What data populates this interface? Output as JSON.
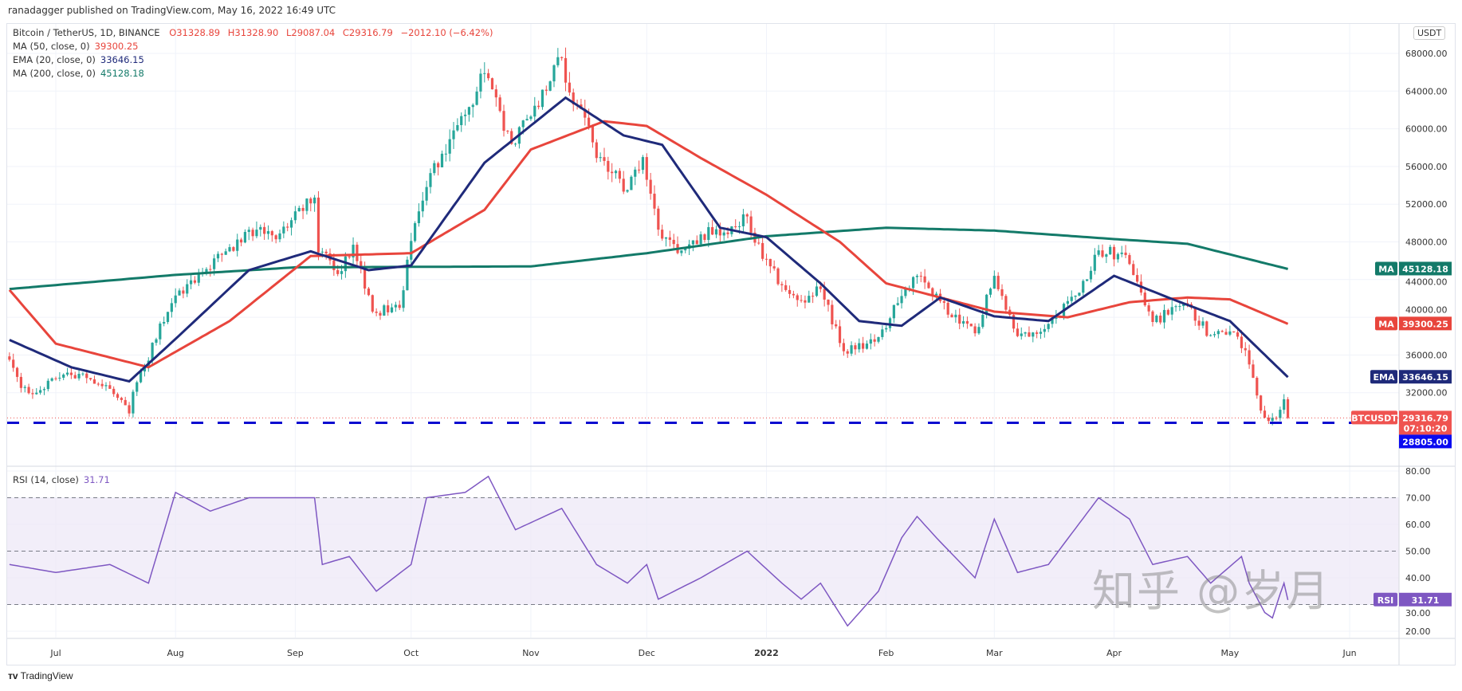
{
  "published": "ranadagger published on TradingView.com, May 16, 2022 16:49 UTC",
  "legend": {
    "symbol": "Bitcoin / TetherUS, 1D, BINANCE",
    "o": "O31328.89",
    "h": "H31328.90",
    "l": "L29087.04",
    "c": "C29316.79",
    "change": "−2012.10 (−6.42%)",
    "ma50_label": "MA (50, close, 0)",
    "ma50_value": "39300.25",
    "ema20_label": "EMA (20, close, 0)",
    "ema20_value": "33646.15",
    "ma200_label": "MA (200, close, 0)",
    "ma200_value": "45128.18",
    "rsi_label": "RSI (14, close)",
    "rsi_value": "31.71"
  },
  "currency_button": "USDT",
  "badges": {
    "ma200_tag": "MA",
    "ma200": "45128.18",
    "ma50_tag": "MA",
    "ma50": "39300.25",
    "ema_tag": "EMA",
    "ema": "33646.15",
    "symbol_tag": "BTCUSDT",
    "last": "29316.79",
    "countdown": "07:10:20",
    "support": "28805.00",
    "rsi_tag": "RSI",
    "rsi": "31.71"
  },
  "colors": {
    "up": "#26a69a",
    "down": "#ef5350",
    "ma50": "#e8453c",
    "ema20": "#1f2a7a",
    "ma200": "#137a69",
    "rsi": "#7e57c2",
    "support": "#0a0ad0"
  },
  "footer": "TradingView",
  "watermark": "知乎 @岁月",
  "chart_data": {
    "type": "candlestick",
    "title": "Bitcoin / TetherUS, 1D, BINANCE",
    "ylim": [
      27000,
      69500
    ],
    "price_ticks": [
      "68000.00",
      "64000.00",
      "60000.00",
      "56000.00",
      "52000.00",
      "48000.00",
      "44000.00",
      "40000.00",
      "36000.00",
      "32000.00"
    ],
    "price_tick_values": [
      68000,
      64000,
      60000,
      56000,
      52000,
      48000,
      44000,
      40000,
      36000,
      32000
    ],
    "x_ticks": [
      {
        "label": "Jul",
        "date": "2021-07-01"
      },
      {
        "label": "Aug",
        "date": "2021-08-01"
      },
      {
        "label": "Sep",
        "date": "2021-09-01"
      },
      {
        "label": "Oct",
        "date": "2021-10-01"
      },
      {
        "label": "Nov",
        "date": "2021-11-01"
      },
      {
        "label": "Dec",
        "date": "2021-12-01"
      },
      {
        "label": "2022",
        "date": "2022-01-01"
      },
      {
        "label": "Feb",
        "date": "2022-02-01"
      },
      {
        "label": "Mar",
        "date": "2022-03-01"
      },
      {
        "label": "Apr",
        "date": "2022-04-01"
      },
      {
        "label": "May",
        "date": "2022-05-01"
      },
      {
        "label": "Jun",
        "date": "2022-06-01"
      }
    ],
    "support_level": 28805,
    "close_keypoints": [
      [
        "2021-06-19",
        35500
      ],
      [
        "2021-06-22",
        32500
      ],
      [
        "2021-06-26",
        32000
      ],
      [
        "2021-07-01",
        33500
      ],
      [
        "2021-07-07",
        34000
      ],
      [
        "2021-07-14",
        32800
      ],
      [
        "2021-07-20",
        29800
      ],
      [
        "2021-07-21",
        32100
      ],
      [
        "2021-07-25",
        35400
      ],
      [
        "2021-07-26",
        37300
      ],
      [
        "2021-07-31",
        41500
      ],
      [
        "2021-08-07",
        44600
      ],
      [
        "2021-08-14",
        47000
      ],
      [
        "2021-08-22",
        49300
      ],
      [
        "2021-08-28",
        48900
      ],
      [
        "2021-09-06",
        52700
      ],
      [
        "2021-09-07",
        46900
      ],
      [
        "2021-09-13",
        44900
      ],
      [
        "2021-09-16",
        47700
      ],
      [
        "2021-09-21",
        40600
      ],
      [
        "2021-09-28",
        41000
      ],
      [
        "2021-10-01",
        48100
      ],
      [
        "2021-10-06",
        55300
      ],
      [
        "2021-10-15",
        61500
      ],
      [
        "2021-10-20",
        65900
      ],
      [
        "2021-10-27",
        58400
      ],
      [
        "2021-11-01",
        61300
      ],
      [
        "2021-11-09",
        67500
      ],
      [
        "2021-11-10",
        64900
      ],
      [
        "2021-11-16",
        60300
      ],
      [
        "2021-11-18",
        56900
      ],
      [
        "2021-11-26",
        53500
      ],
      [
        "2021-11-30",
        57000
      ],
      [
        "2021-12-04",
        49300
      ],
      [
        "2021-12-10",
        47100
      ],
      [
        "2021-12-15",
        48800
      ],
      [
        "2021-12-21",
        49000
      ],
      [
        "2021-12-27",
        50700
      ],
      [
        "2021-12-31",
        46200
      ],
      [
        "2022-01-05",
        43400
      ],
      [
        "2022-01-10",
        41800
      ],
      [
        "2022-01-15",
        43000
      ],
      [
        "2022-01-21",
        36400
      ],
      [
        "2022-01-24",
        36600
      ],
      [
        "2022-01-30",
        37900
      ],
      [
        "2022-02-04",
        41500
      ],
      [
        "2022-02-09",
        44400
      ],
      [
        "2022-02-14",
        42500
      ],
      [
        "2022-02-18",
        40000
      ],
      [
        "2022-02-24",
        38300
      ],
      [
        "2022-03-01",
        44400
      ],
      [
        "2022-03-07",
        38000
      ],
      [
        "2022-03-15",
        39300
      ],
      [
        "2022-03-22",
        42300
      ],
      [
        "2022-03-28",
        47100
      ],
      [
        "2022-04-04",
        46600
      ],
      [
        "2022-04-11",
        39500
      ],
      [
        "2022-04-19",
        41500
      ],
      [
        "2022-04-26",
        38100
      ],
      [
        "2022-05-01",
        38500
      ],
      [
        "2022-05-05",
        36500
      ],
      [
        "2022-05-09",
        30100
      ],
      [
        "2022-05-11",
        29000
      ],
      [
        "2022-05-13",
        29300
      ],
      [
        "2022-05-15",
        31300
      ],
      [
        "2022-05-16",
        29316.79
      ]
    ],
    "ema20": [
      [
        "2021-06-19",
        37600
      ],
      [
        "2021-07-05",
        34700
      ],
      [
        "2021-07-20",
        33200
      ],
      [
        "2021-08-01",
        37700
      ],
      [
        "2021-08-20",
        45000
      ],
      [
        "2021-09-05",
        47000
      ],
      [
        "2021-09-20",
        45000
      ],
      [
        "2021-10-01",
        45500
      ],
      [
        "2021-10-20",
        56400
      ],
      [
        "2021-11-10",
        63300
      ],
      [
        "2021-11-25",
        59300
      ],
      [
        "2021-12-05",
        58300
      ],
      [
        "2021-12-20",
        49500
      ],
      [
        "2022-01-01",
        48500
      ],
      [
        "2022-01-15",
        43600
      ],
      [
        "2022-01-25",
        39600
      ],
      [
        "2022-02-05",
        39100
      ],
      [
        "2022-02-15",
        42100
      ],
      [
        "2022-03-01",
        40100
      ],
      [
        "2022-03-15",
        39600
      ],
      [
        "2022-04-01",
        44400
      ],
      [
        "2022-04-15",
        42100
      ],
      [
        "2022-05-01",
        39600
      ],
      [
        "2022-05-16",
        33646.15
      ]
    ],
    "ma50": [
      [
        "2021-06-19",
        42900
      ],
      [
        "2021-07-01",
        37200
      ],
      [
        "2021-07-25",
        34700
      ],
      [
        "2021-08-15",
        39600
      ],
      [
        "2021-09-05",
        46500
      ],
      [
        "2021-10-01",
        46800
      ],
      [
        "2021-10-20",
        51400
      ],
      [
        "2021-11-01",
        57800
      ],
      [
        "2021-11-20",
        60800
      ],
      [
        "2021-12-01",
        60300
      ],
      [
        "2021-12-15",
        56900
      ],
      [
        "2022-01-01",
        53000
      ],
      [
        "2022-01-20",
        48000
      ],
      [
        "2022-02-01",
        43600
      ],
      [
        "2022-02-15",
        42100
      ],
      [
        "2022-03-01",
        40600
      ],
      [
        "2022-03-20",
        40000
      ],
      [
        "2022-04-05",
        41600
      ],
      [
        "2022-04-20",
        42100
      ],
      [
        "2022-05-01",
        41900
      ],
      [
        "2022-05-16",
        39300.25
      ]
    ],
    "ma200": [
      [
        "2021-06-19",
        43000
      ],
      [
        "2021-08-01",
        44500
      ],
      [
        "2021-09-01",
        45300
      ],
      [
        "2021-11-01",
        45400
      ],
      [
        "2021-12-01",
        46800
      ],
      [
        "2022-01-01",
        48600
      ],
      [
        "2022-02-01",
        49500
      ],
      [
        "2022-03-01",
        49200
      ],
      [
        "2022-04-01",
        48300
      ],
      [
        "2022-04-20",
        47800
      ],
      [
        "2022-05-16",
        45128.18
      ]
    ],
    "rsi": {
      "ylim": [
        15,
        82
      ],
      "ticks": [
        "80.00",
        "70.00",
        "60.00",
        "50.00",
        "40.00",
        "30.00",
        "20.00"
      ],
      "tick_values": [
        80,
        70,
        60,
        50,
        40,
        30,
        20
      ],
      "band": [
        30,
        70
      ],
      "values": [
        [
          "2021-06-19",
          45
        ],
        [
          "2021-07-01",
          42
        ],
        [
          "2021-07-15",
          45
        ],
        [
          "2021-07-25",
          38
        ],
        [
          "2021-08-01",
          72
        ],
        [
          "2021-08-10",
          65
        ],
        [
          "2021-08-20",
          70
        ],
        [
          "2021-09-06",
          70
        ],
        [
          "2021-09-08",
          45
        ],
        [
          "2021-09-15",
          48
        ],
        [
          "2021-09-22",
          35
        ],
        [
          "2021-10-01",
          45
        ],
        [
          "2021-10-05",
          70
        ],
        [
          "2021-10-15",
          72
        ],
        [
          "2021-10-21",
          78
        ],
        [
          "2021-10-28",
          58
        ],
        [
          "2021-11-09",
          66
        ],
        [
          "2021-11-18",
          45
        ],
        [
          "2021-11-26",
          38
        ],
        [
          "2021-12-01",
          45
        ],
        [
          "2021-12-04",
          32
        ],
        [
          "2021-12-15",
          40
        ],
        [
          "2021-12-27",
          50
        ],
        [
          "2022-01-05",
          38
        ],
        [
          "2022-01-10",
          32
        ],
        [
          "2022-01-15",
          38
        ],
        [
          "2022-01-22",
          22
        ],
        [
          "2022-01-30",
          35
        ],
        [
          "2022-02-05",
          55
        ],
        [
          "2022-02-09",
          63
        ],
        [
          "2022-02-14",
          55
        ],
        [
          "2022-02-24",
          40
        ],
        [
          "2022-03-01",
          62
        ],
        [
          "2022-03-07",
          42
        ],
        [
          "2022-03-15",
          45
        ],
        [
          "2022-03-28",
          70
        ],
        [
          "2022-04-05",
          62
        ],
        [
          "2022-04-11",
          45
        ],
        [
          "2022-04-20",
          48
        ],
        [
          "2022-04-26",
          38
        ],
        [
          "2022-05-04",
          48
        ],
        [
          "2022-05-06",
          38
        ],
        [
          "2022-05-10",
          27
        ],
        [
          "2022-05-12",
          25
        ],
        [
          "2022-05-14",
          34
        ],
        [
          "2022-05-15",
          38
        ],
        [
          "2022-05-16",
          31.71
        ]
      ]
    }
  }
}
